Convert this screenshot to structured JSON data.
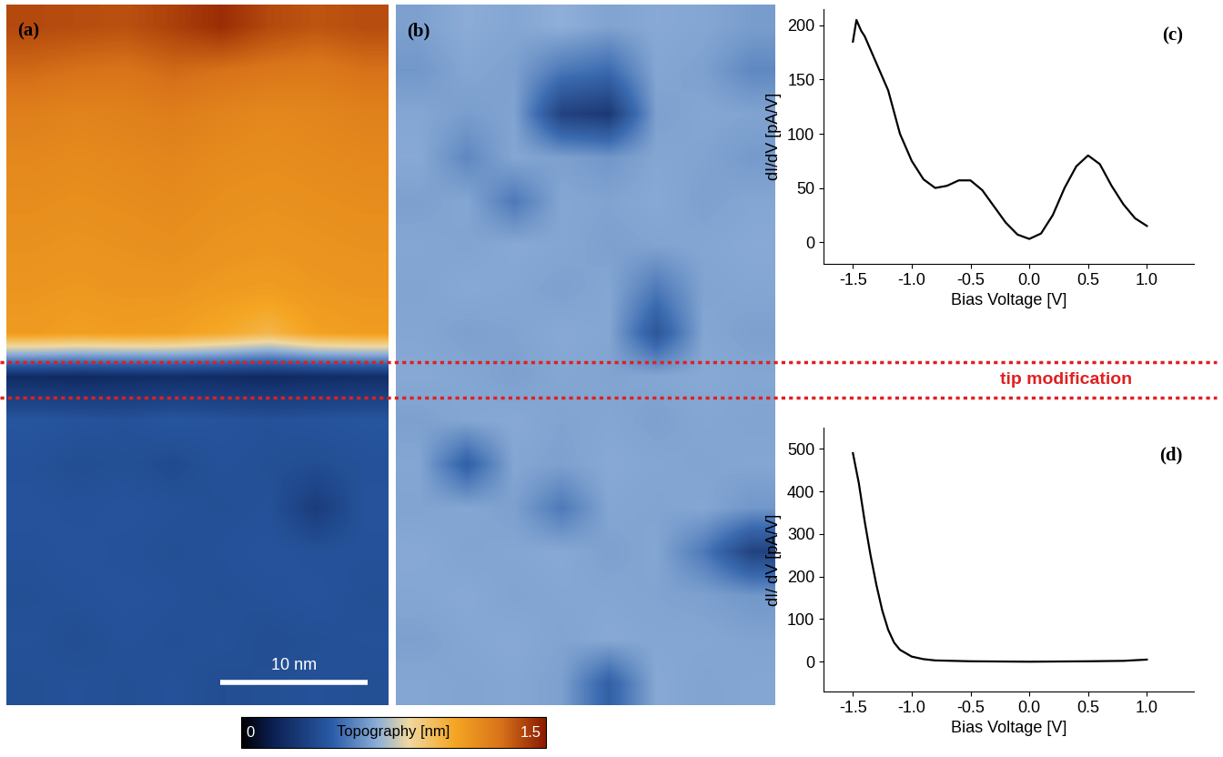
{
  "annotation": "tip modification",
  "chart_data": [
    {
      "type": "heatmap",
      "panel": "(a)",
      "xlim": [
        0,
        26
      ],
      "ylim": [
        0,
        48
      ],
      "tick_labels": false,
      "scale_bar": {
        "length": 10,
        "label": "10 nm"
      },
      "colorbar": {
        "label": "Topography [nm]",
        "range": [
          0,
          1.5
        ],
        "ticks": [
          0,
          1.5
        ]
      },
      "cells": [
        [
          1.38,
          1.37,
          1.36,
          1.4,
          1.45,
          1.38,
          1.35,
          1.37
        ],
        [
          1.3,
          1.28,
          1.27,
          1.3,
          1.28,
          1.26,
          1.25,
          1.28
        ],
        [
          1.22,
          1.2,
          1.21,
          1.23,
          1.2,
          1.18,
          1.19,
          1.21
        ],
        [
          1.18,
          1.17,
          1.18,
          1.19,
          1.17,
          1.16,
          1.17,
          1.18
        ],
        [
          1.16,
          1.15,
          1.16,
          1.17,
          1.15,
          1.14,
          1.15,
          1.16
        ],
        [
          1.14,
          1.13,
          1.14,
          1.15,
          1.13,
          1.12,
          1.13,
          1.14
        ],
        [
          1.12,
          1.11,
          1.12,
          1.12,
          1.1,
          1.09,
          1.11,
          1.12
        ],
        [
          1.1,
          1.08,
          1.09,
          1.08,
          1.04,
          0.98,
          1.07,
          1.09
        ],
        [
          0.22,
          0.21,
          0.22,
          0.23,
          0.22,
          0.21,
          0.22,
          0.23
        ],
        [
          0.42,
          0.41,
          0.4,
          0.42,
          0.41,
          0.4,
          0.41,
          0.42
        ],
        [
          0.4,
          0.38,
          0.39,
          0.37,
          0.4,
          0.39,
          0.38,
          0.4
        ],
        [
          0.41,
          0.4,
          0.41,
          0.4,
          0.39,
          0.4,
          0.3,
          0.41
        ],
        [
          0.4,
          0.41,
          0.4,
          0.39,
          0.4,
          0.41,
          0.4,
          0.4
        ],
        [
          0.39,
          0.4,
          0.41,
          0.4,
          0.39,
          0.4,
          0.41,
          0.39
        ],
        [
          0.4,
          0.38,
          0.4,
          0.39,
          0.4,
          0.38,
          0.39,
          0.4
        ],
        [
          0.39,
          0.4,
          0.39,
          0.4,
          0.38,
          0.39,
          0.4,
          0.39
        ]
      ]
    },
    {
      "type": "heatmap",
      "panel": "(b)",
      "xlim": [
        0,
        26
      ],
      "ylim": [
        0,
        48
      ],
      "tick_labels": false,
      "color_range": [
        0,
        1
      ],
      "cells": [
        [
          0.58,
          0.62,
          0.6,
          0.63,
          0.59,
          0.61,
          0.6,
          0.57
        ],
        [
          0.55,
          0.6,
          0.58,
          0.45,
          0.4,
          0.6,
          0.58,
          0.5
        ],
        [
          0.6,
          0.57,
          0.59,
          0.2,
          0.15,
          0.58,
          0.6,
          0.59
        ],
        [
          0.61,
          0.5,
          0.6,
          0.58,
          0.55,
          0.6,
          0.59,
          0.56
        ],
        [
          0.58,
          0.6,
          0.45,
          0.6,
          0.59,
          0.61,
          0.58,
          0.6
        ],
        [
          0.6,
          0.59,
          0.61,
          0.6,
          0.58,
          0.59,
          0.6,
          0.61
        ],
        [
          0.59,
          0.61,
          0.6,
          0.58,
          0.6,
          0.45,
          0.59,
          0.6
        ],
        [
          0.6,
          0.58,
          0.59,
          0.61,
          0.6,
          0.3,
          0.6,
          0.58
        ],
        [
          0.61,
          0.6,
          0.58,
          0.6,
          0.59,
          0.6,
          0.61,
          0.6
        ],
        [
          0.58,
          0.6,
          0.61,
          0.59,
          0.6,
          0.58,
          0.6,
          0.59
        ],
        [
          0.6,
          0.35,
          0.6,
          0.58,
          0.61,
          0.6,
          0.59,
          0.6
        ],
        [
          0.59,
          0.6,
          0.58,
          0.45,
          0.6,
          0.59,
          0.6,
          0.55
        ],
        [
          0.61,
          0.59,
          0.6,
          0.61,
          0.58,
          0.6,
          0.45,
          0.2
        ],
        [
          0.6,
          0.61,
          0.59,
          0.6,
          0.6,
          0.59,
          0.58,
          0.55
        ],
        [
          0.58,
          0.6,
          0.61,
          0.59,
          0.61,
          0.6,
          0.6,
          0.59
        ],
        [
          0.6,
          0.59,
          0.6,
          0.58,
          0.35,
          0.61,
          0.59,
          0.6
        ]
      ]
    },
    {
      "type": "line",
      "panel": "(c)",
      "color": "#000000",
      "x_label": "Bias Voltage [V]",
      "y_label": "dI/dV [pA/V]",
      "x": [
        -1.5,
        -1.47,
        -1.43,
        -1.4,
        -1.3,
        -1.2,
        -1.1,
        -1.0,
        -0.9,
        -0.8,
        -0.7,
        -0.6,
        -0.5,
        -0.4,
        -0.3,
        -0.2,
        -0.1,
        0.0,
        0.1,
        0.2,
        0.3,
        0.4,
        0.5,
        0.6,
        0.7,
        0.8,
        0.9,
        1.0
      ],
      "values": [
        185,
        205,
        195,
        190,
        165,
        140,
        100,
        75,
        58,
        50,
        52,
        57,
        57,
        48,
        33,
        18,
        7,
        3,
        8,
        25,
        50,
        70,
        80,
        72,
        52,
        35,
        22,
        15
      ],
      "xlim": [
        -1.75,
        1.4
      ],
      "ylim": [
        -20,
        215
      ],
      "xticks": [
        -1.5,
        -1.0,
        -0.5,
        0.0,
        0.5,
        1.0
      ],
      "yticks": [
        0,
        50,
        100,
        150,
        200
      ]
    },
    {
      "type": "line",
      "panel": "(d)",
      "color": "#000000",
      "x_label": "Bias Voltage [V]",
      "y_label": "dI/ dV [pA/V]",
      "x": [
        -1.5,
        -1.45,
        -1.4,
        -1.35,
        -1.3,
        -1.25,
        -1.2,
        -1.15,
        -1.1,
        -1.0,
        -0.9,
        -0.8,
        -0.5,
        0.0,
        0.5,
        0.8,
        1.0
      ],
      "values": [
        490,
        420,
        330,
        250,
        180,
        120,
        75,
        45,
        28,
        12,
        6,
        3,
        1,
        0,
        1,
        2,
        5
      ],
      "xlim": [
        -1.75,
        1.4
      ],
      "ylim": [
        -70,
        550
      ],
      "xticks": [
        -1.5,
        -1.0,
        -0.5,
        0.0,
        0.5,
        1.0
      ],
      "yticks": [
        0,
        100,
        200,
        300,
        400,
        500
      ]
    }
  ]
}
